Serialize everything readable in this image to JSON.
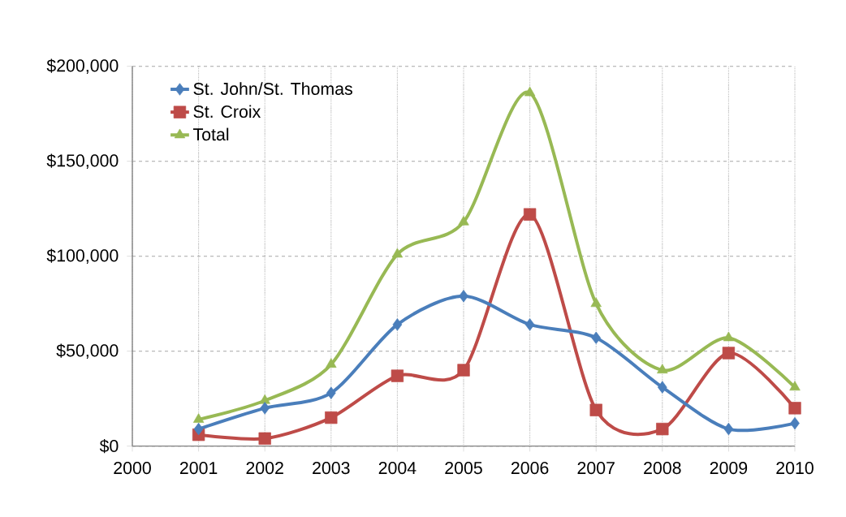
{
  "chart_data": {
    "type": "line",
    "x": [
      2001,
      2002,
      2003,
      2004,
      2005,
      2006,
      2007,
      2008,
      2009,
      2010
    ],
    "series": [
      {
        "name": "St. John/St. Thomas",
        "color": "#4a7ebb",
        "marker": "diamond",
        "values": [
          9000,
          20000,
          28000,
          64000,
          79000,
          64000,
          57000,
          31000,
          9000,
          12000
        ]
      },
      {
        "name": "St. Croix",
        "color": "#be4b48",
        "marker": "square",
        "values": [
          6000,
          4000,
          15000,
          37000,
          40000,
          122000,
          19000,
          9000,
          49000,
          20000
        ]
      },
      {
        "name": "Total",
        "color": "#98b954",
        "marker": "triangle",
        "values": [
          14000,
          24000,
          43000,
          101000,
          118000,
          186000,
          75000,
          40000,
          57000,
          31000
        ]
      }
    ],
    "xlim": [
      2000,
      2010
    ],
    "xticks": [
      2000,
      2001,
      2002,
      2003,
      2004,
      2005,
      2006,
      2007,
      2008,
      2009,
      2010
    ],
    "ylim": [
      0,
      200000
    ],
    "yticks": [
      {
        "value": 0,
        "label": "$0"
      },
      {
        "value": 50000,
        "label": "$50,000"
      },
      {
        "value": 100000,
        "label": "$100,000"
      },
      {
        "value": 150000,
        "label": "$150,000"
      },
      {
        "value": 200000,
        "label": "$200,000"
      }
    ],
    "grid": true,
    "legend": "top left",
    "line_style": "solid"
  }
}
